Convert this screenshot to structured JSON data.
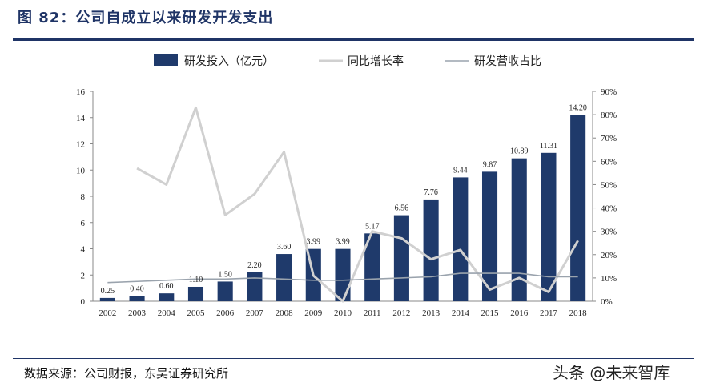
{
  "figure": {
    "title": "图 82：公司自成立以来研发开发支出",
    "source": "数据来源：公司财报，东吴证券研究所",
    "watermark": "头条 @未来智库"
  },
  "colors": {
    "bar": "#1f3a6b",
    "growth_line": "#d0d0d0",
    "ratio_line": "#9aa3ad",
    "rule": "#1f3466"
  },
  "chart_data": {
    "type": "bar",
    "categories": [
      "2002",
      "2003",
      "2004",
      "2005",
      "2006",
      "2007",
      "2008",
      "2009",
      "2010",
      "2011",
      "2012",
      "2013",
      "2014",
      "2015",
      "2016",
      "2017",
      "2018"
    ],
    "series": [
      {
        "name": "研发投入（亿元）",
        "type": "bar",
        "axis": "left",
        "values": [
          0.25,
          0.4,
          0.6,
          1.1,
          1.5,
          2.2,
          3.6,
          3.99,
          3.99,
          5.17,
          6.56,
          7.76,
          9.44,
          9.87,
          10.89,
          11.31,
          14.2
        ],
        "labels": [
          "0.25",
          "0.40",
          "0.60",
          "1.10",
          "1.50",
          "2.20",
          "3.60",
          "3.99",
          "3.99",
          "5.17",
          "6.56",
          "7.76",
          "9.44",
          "9.87",
          "10.89",
          "11.31",
          "14.20"
        ]
      },
      {
        "name": "同比增长率",
        "type": "line",
        "axis": "right",
        "values": [
          null,
          57,
          50,
          83,
          37,
          46,
          64,
          11,
          0,
          30,
          27,
          18,
          22,
          5,
          10,
          4,
          26
        ]
      },
      {
        "name": "研发营收占比",
        "type": "line",
        "axis": "right",
        "values": [
          8,
          8.5,
          9,
          9.5,
          9.5,
          10,
          9.5,
          9,
          9,
          9.5,
          10,
          10.5,
          12,
          12,
          12,
          10.5,
          10.5
        ]
      }
    ],
    "y_left": {
      "min": 0,
      "max": 16,
      "ticks": [
        "0",
        "2",
        "4",
        "6",
        "8",
        "10",
        "12",
        "14",
        "16"
      ]
    },
    "y_right": {
      "min": 0,
      "max": 90,
      "ticks": [
        "0%",
        "10%",
        "20%",
        "30%",
        "40%",
        "50%",
        "60%",
        "70%",
        "80%",
        "90%"
      ]
    },
    "grid": false,
    "legend_position": "top"
  }
}
